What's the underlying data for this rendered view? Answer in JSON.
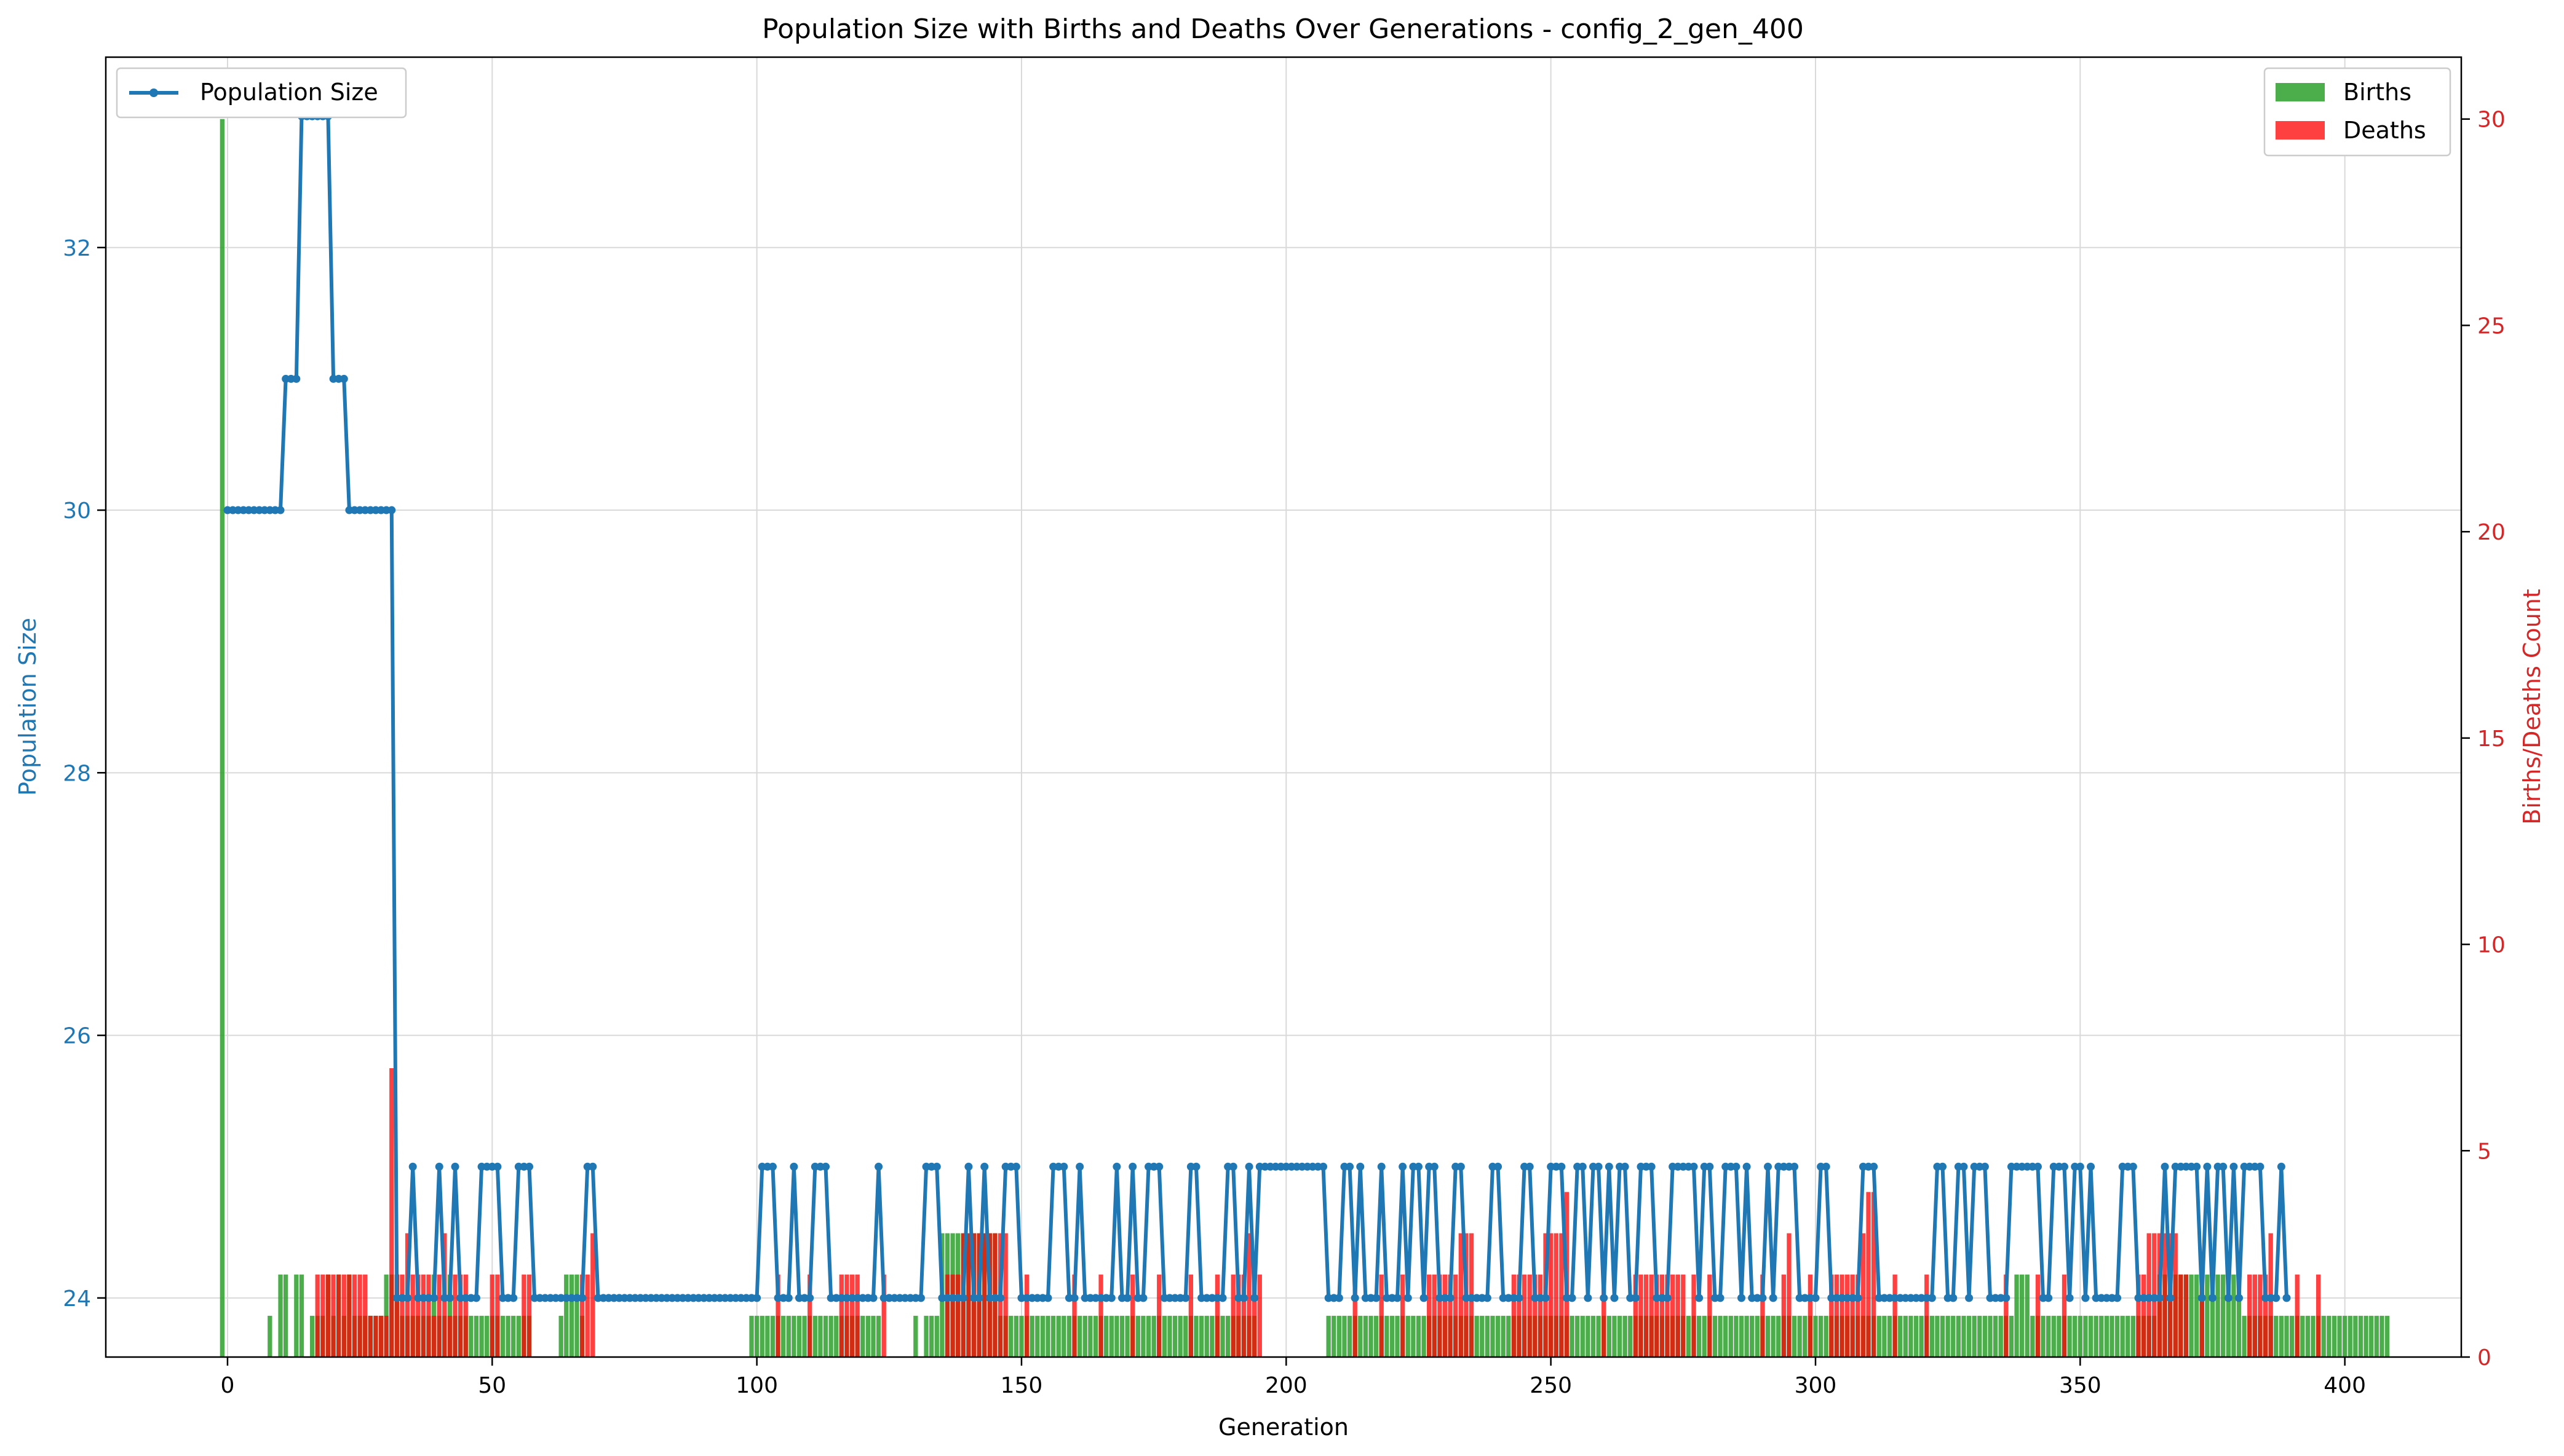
{
  "chart_data": {
    "type": "line",
    "title": "Population Size with Births and Deaths Over Generations - config_2_gen_400",
    "xlabel": "Generation",
    "ylabel_left": "Population Size",
    "ylabel_right": "Births/Deaths Count",
    "xlim": [
      -23,
      422
    ],
    "ylim_left": [
      23.55,
      33.45
    ],
    "ylim_right": [
      0,
      31.5
    ],
    "xticks": [
      0,
      50,
      100,
      150,
      200,
      250,
      300,
      350,
      400
    ],
    "xtick_labels": [
      "0",
      "50",
      "100",
      "150",
      "200",
      "250",
      "300",
      "350",
      "400"
    ],
    "yticks_left": [
      24,
      26,
      28,
      30,
      32
    ],
    "ytick_labels_left": [
      "24",
      "26",
      "28",
      "30",
      "32"
    ],
    "yticks_right": [
      0,
      5,
      10,
      15,
      20,
      25,
      30
    ],
    "ytick_labels_right": [
      "0",
      "5",
      "10",
      "15",
      "20",
      "25",
      "30"
    ],
    "grid": true,
    "colors": {
      "population": "#1f77b4",
      "births": "#2ca02c",
      "deaths": "#ff0000",
      "left_axis": "#1f77b4",
      "right_axis": "#d62728"
    },
    "legend_left": {
      "placement": "top-left",
      "entries": [
        "Population Size"
      ]
    },
    "legend_right": {
      "placement": "top-right",
      "entries": [
        "Births",
        "Deaths"
      ]
    },
    "series": [
      {
        "name": "Population Size",
        "axis": "left",
        "kind": "line",
        "values": [
          30,
          30,
          30,
          30,
          30,
          30,
          30,
          30,
          30,
          30,
          30,
          31,
          31,
          31,
          33,
          33,
          33,
          33,
          33,
          33,
          31,
          31,
          31,
          30,
          30,
          30,
          30,
          30,
          30,
          30,
          30,
          30,
          24,
          24,
          24,
          25,
          24,
          24,
          24,
          24,
          25,
          24,
          24,
          25,
          24,
          24,
          24,
          24,
          25,
          25,
          25,
          25,
          24,
          24,
          24,
          25,
          25,
          25,
          24,
          24,
          24,
          24,
          24,
          24,
          24,
          24,
          24,
          24,
          25,
          25,
          24,
          24,
          24,
          24,
          24,
          24,
          24,
          24,
          24,
          24,
          24,
          24,
          24,
          24,
          24,
          24,
          24,
          24,
          24,
          24,
          24,
          24,
          24,
          24,
          24,
          24,
          24,
          24,
          24,
          24,
          24,
          25,
          25,
          25,
          24,
          24,
          24,
          25,
          24,
          24,
          24,
          25,
          25,
          25,
          24,
          24,
          24,
          24,
          24,
          24,
          24,
          24,
          24,
          25,
          24,
          24,
          24,
          24,
          24,
          24,
          24,
          24,
          25,
          25,
          25,
          24,
          24,
          24,
          24,
          24,
          25,
          24,
          24,
          25,
          24,
          24,
          24,
          25,
          25,
          25,
          24,
          24,
          24,
          24,
          24,
          24,
          25,
          25,
          25,
          24,
          24,
          25,
          24,
          24,
          24,
          24,
          24,
          24,
          25,
          24,
          24,
          25,
          24,
          24,
          25,
          25,
          25,
          24,
          24,
          24,
          24,
          24,
          25,
          25,
          24,
          24,
          24,
          24,
          24,
          25,
          25,
          24,
          24,
          25,
          24,
          25,
          25,
          25,
          25,
          25,
          25,
          25,
          25,
          25,
          25,
          25,
          25,
          25,
          24,
          24,
          24,
          25,
          25,
          24,
          25,
          24,
          24,
          24,
          25,
          24,
          24,
          24,
          25,
          24,
          25,
          25,
          24,
          25,
          25,
          24,
          24,
          24,
          25,
          25,
          24,
          24,
          24,
          24,
          24,
          25,
          25,
          24,
          24,
          24,
          24,
          25,
          25,
          24,
          24,
          24,
          25,
          25,
          25,
          24,
          24,
          25,
          25,
          24,
          25,
          25,
          24,
          25,
          24,
          25,
          25,
          24,
          24,
          25,
          25,
          25,
          24,
          24,
          24,
          25,
          25,
          25,
          25,
          25,
          24,
          25,
          25,
          24,
          24,
          25,
          25,
          25,
          24,
          25,
          24,
          24,
          24,
          25,
          24,
          25,
          25,
          25,
          25,
          24,
          24,
          24,
          24,
          25,
          25,
          24,
          24,
          24,
          24,
          24,
          24,
          25,
          25,
          25,
          24,
          24,
          24,
          24,
          24,
          24,
          24,
          24,
          24,
          24,
          24,
          25,
          25,
          24,
          24,
          25,
          25,
          24,
          25,
          25,
          25,
          24,
          24,
          24,
          24,
          25,
          25,
          25,
          25,
          25,
          25,
          24,
          24,
          25,
          25,
          25,
          24,
          25,
          25,
          24,
          25,
          24,
          24,
          24,
          24,
          24,
          25,
          25,
          25,
          24,
          24,
          24,
          24,
          24,
          25,
          24,
          25,
          25,
          25,
          25,
          25,
          24,
          25,
          24,
          25,
          25,
          24,
          25,
          24,
          25,
          25,
          25,
          25,
          24,
          24,
          24,
          25,
          24
        ]
      },
      {
        "name": "Births",
        "axis": "right",
        "kind": "bar",
        "values": [
          30,
          0,
          0,
          0,
          0,
          0,
          0,
          0,
          0,
          1,
          0,
          2,
          2,
          0,
          2,
          2,
          0,
          1,
          1,
          1,
          2,
          1,
          2,
          1,
          2,
          1,
          1,
          1,
          1,
          1,
          1,
          2,
          2,
          2,
          1,
          1,
          1,
          1,
          1,
          1,
          2,
          1,
          1,
          2,
          1,
          1,
          1,
          1,
          1,
          1,
          1,
          1,
          1,
          1,
          1,
          1,
          1,
          1,
          1,
          0,
          0,
          0,
          0,
          0,
          1,
          2,
          2,
          2,
          1,
          0,
          0,
          0,
          0,
          0,
          0,
          0,
          0,
          0,
          0,
          0,
          0,
          0,
          0,
          0,
          0,
          0,
          0,
          0,
          0,
          0,
          0,
          0,
          0,
          0,
          0,
          0,
          0,
          0,
          0,
          0,
          1,
          1,
          1,
          1,
          1,
          1,
          1,
          1,
          1,
          1,
          1,
          1,
          1,
          1,
          1,
          1,
          1,
          1,
          1,
          1,
          1,
          1,
          1,
          1,
          1,
          0,
          0,
          0,
          0,
          0,
          0,
          1,
          0,
          1,
          1,
          1,
          3,
          3,
          3,
          3,
          3,
          3,
          3,
          3,
          3,
          3,
          3,
          1,
          1,
          1,
          1,
          1,
          1,
          1,
          1,
          1,
          1,
          1,
          1,
          1,
          1,
          1,
          1,
          1,
          1,
          1,
          1,
          1,
          1,
          1,
          1,
          1,
          1,
          1,
          1,
          1,
          1,
          1,
          1,
          1,
          1,
          1,
          1,
          1,
          1,
          1,
          1,
          1,
          1,
          1,
          1,
          1,
          1,
          1,
          1,
          1,
          0,
          0,
          0,
          0,
          0,
          0,
          0,
          0,
          0,
          0,
          0,
          0,
          0,
          1,
          1,
          1,
          1,
          1,
          1,
          1,
          1,
          1,
          1,
          1,
          1,
          1,
          1,
          1,
          1,
          1,
          1,
          1,
          1,
          1,
          1,
          1,
          1,
          1,
          1,
          1,
          1,
          1,
          1,
          1,
          1,
          1,
          1,
          1,
          1,
          1,
          1,
          1,
          1,
          1,
          1,
          1,
          1,
          1,
          1,
          1,
          1,
          1,
          1,
          1,
          1,
          1,
          1,
          1,
          1,
          1,
          1,
          1,
          1,
          1,
          1,
          1,
          1,
          1,
          1,
          1,
          1,
          1,
          1,
          1,
          1,
          1,
          1,
          1,
          1,
          1,
          1,
          1,
          1,
          1,
          1,
          1,
          1,
          1,
          1,
          1,
          1,
          1,
          1,
          1,
          1,
          1,
          1,
          1,
          1,
          1,
          1,
          1,
          1,
          1,
          1,
          1,
          1,
          1,
          1,
          1,
          1,
          1,
          1,
          1,
          1,
          1,
          1,
          1,
          1,
          1,
          1,
          1,
          1,
          1,
          1,
          1,
          1,
          1,
          1,
          1,
          1,
          1,
          1,
          2,
          2,
          2,
          1,
          1,
          1,
          1,
          1,
          1,
          1,
          1,
          1,
          1,
          1,
          1,
          1,
          1,
          1,
          1,
          1,
          1,
          1,
          1,
          1,
          1,
          1,
          1,
          2,
          2,
          2,
          2,
          2,
          2,
          2,
          2,
          2,
          2,
          2,
          2,
          2,
          2,
          2,
          2,
          1,
          1,
          1,
          1,
          1,
          1,
          1,
          1,
          1,
          1,
          1,
          1,
          1,
          1,
          1,
          1,
          1,
          1,
          1,
          1,
          1,
          1,
          1,
          1,
          1,
          1,
          1,
          1
        ]
      },
      {
        "name": "Deaths",
        "axis": "right",
        "kind": "bar",
        "values": [
          0,
          0,
          0,
          0,
          0,
          0,
          0,
          0,
          0,
          0,
          0,
          0,
          0,
          0,
          0,
          0,
          0,
          0,
          2,
          2,
          2,
          2,
          2,
          2,
          2,
          2,
          2,
          2,
          1,
          1,
          1,
          1,
          7,
          2,
          2,
          3,
          2,
          2,
          2,
          2,
          1,
          2,
          3,
          1,
          2,
          2,
          2,
          0,
          0,
          0,
          0,
          2,
          2,
          0,
          0,
          0,
          0,
          2,
          2,
          0,
          0,
          0,
          0,
          0,
          0,
          0,
          0,
          0,
          2,
          2,
          3,
          0,
          0,
          0,
          0,
          0,
          0,
          0,
          0,
          0,
          0,
          0,
          0,
          0,
          0,
          0,
          0,
          0,
          0,
          0,
          0,
          0,
          0,
          0,
          0,
          0,
          0,
          0,
          0,
          0,
          0,
          0,
          0,
          0,
          0,
          2,
          0,
          0,
          0,
          0,
          0,
          2,
          0,
          0,
          0,
          0,
          0,
          2,
          2,
          2,
          2,
          0,
          0,
          0,
          0,
          2,
          0,
          0,
          0,
          0,
          0,
          0,
          0,
          0,
          0,
          0,
          0,
          2,
          2,
          2,
          3,
          3,
          3,
          3,
          3,
          3,
          3,
          3,
          3,
          0,
          0,
          0,
          2,
          0,
          0,
          0,
          0,
          0,
          0,
          0,
          0,
          2,
          0,
          0,
          0,
          0,
          2,
          0,
          0,
          0,
          0,
          0,
          2,
          0,
          0,
          0,
          0,
          2,
          0,
          0,
          0,
          0,
          0,
          2,
          0,
          0,
          0,
          0,
          2,
          0,
          0,
          2,
          2,
          2,
          3,
          2,
          2,
          0,
          0,
          0,
          0,
          0,
          0,
          0,
          0,
          0,
          0,
          0,
          0,
          0,
          0,
          0,
          0,
          0,
          2,
          0,
          0,
          0,
          0,
          2,
          0,
          0,
          0,
          2,
          0,
          0,
          0,
          0,
          2,
          2,
          2,
          2,
          2,
          2,
          3,
          3,
          3,
          0,
          0,
          0,
          0,
          0,
          0,
          0,
          2,
          2,
          2,
          2,
          2,
          2,
          3,
          3,
          3,
          3,
          4,
          0,
          0,
          0,
          0,
          0,
          0,
          2,
          0,
          0,
          0,
          0,
          0,
          2,
          2,
          2,
          2,
          2,
          2,
          2,
          2,
          2,
          2,
          0,
          2,
          0,
          0,
          2,
          0,
          0,
          0,
          0,
          0,
          0,
          0,
          0,
          0,
          2,
          0,
          0,
          0,
          2,
          3,
          0,
          0,
          0,
          2,
          0,
          0,
          0,
          2,
          2,
          2,
          2,
          2,
          2,
          3,
          4,
          4,
          0,
          0,
          0,
          2,
          0,
          0,
          0,
          0,
          0,
          2,
          0,
          0,
          0,
          0,
          0,
          0,
          0,
          0,
          0,
          0,
          0,
          0,
          0,
          0,
          2,
          0,
          0,
          0,
          0,
          0,
          2,
          0,
          0,
          0,
          0,
          2,
          0,
          0,
          0,
          0,
          0,
          0,
          0,
          0,
          0,
          0,
          0,
          0,
          0,
          2,
          2,
          3,
          3,
          3,
          3,
          3,
          3,
          2,
          2,
          0,
          0,
          2,
          0,
          0,
          0,
          0,
          0,
          0,
          0,
          0,
          2,
          2,
          2,
          2,
          3,
          0,
          0,
          0,
          0,
          2,
          0,
          0,
          0,
          2
        ]
      }
    ]
  }
}
